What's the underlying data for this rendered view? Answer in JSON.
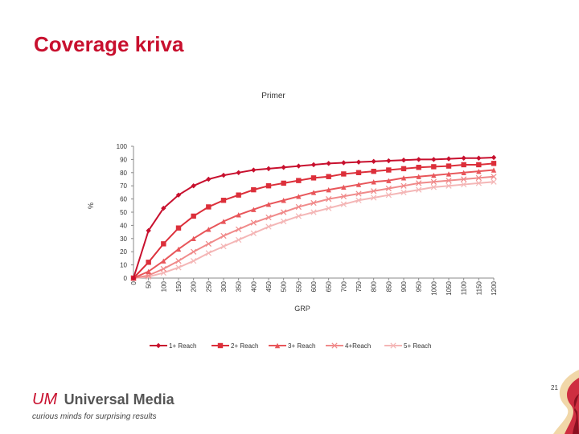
{
  "slide": {
    "title": "Coverage kriva",
    "page_number": "21"
  },
  "logo": {
    "brand_mark": "UM",
    "brand_text": "Universal Media",
    "tagline": "curious minds for surprising results"
  },
  "colors": {
    "title": "#c8102e",
    "accent": "#c8102e",
    "series": [
      "#c8102e",
      "#dc2f3a",
      "#e8565a",
      "#f08a8a",
      "#f4b6b6"
    ]
  },
  "chart_data": {
    "type": "line",
    "title": "Primer",
    "xlabel": "GRP",
    "ylabel": "%",
    "ylim": [
      0,
      100
    ],
    "yticks": [
      0,
      10,
      20,
      30,
      40,
      50,
      60,
      70,
      80,
      90,
      100
    ],
    "grid": false,
    "legend": "bottom",
    "x": [
      0,
      50,
      100,
      150,
      200,
      250,
      300,
      350,
      400,
      450,
      500,
      550,
      600,
      650,
      700,
      750,
      800,
      850,
      900,
      950,
      1000,
      1050,
      1100,
      1150,
      1200
    ],
    "series": [
      {
        "name": "1+ Reach",
        "marker": "diamond",
        "values": [
          0,
          36,
          53,
          63,
          70,
          75,
          78,
          80,
          82,
          83,
          84,
          85,
          86,
          87,
          87.5,
          88,
          88.5,
          89,
          89.5,
          90,
          90,
          90.5,
          91,
          91,
          91.5
        ]
      },
      {
        "name": "2+ Reach",
        "marker": "square",
        "values": [
          0,
          12,
          26,
          38,
          47,
          54,
          59,
          63,
          67,
          70,
          72,
          74,
          76,
          77,
          79,
          80,
          81,
          82,
          83,
          84,
          84.5,
          85,
          86,
          86,
          87
        ]
      },
      {
        "name": "3+ Reach",
        "marker": "triangle",
        "values": [
          0,
          5,
          13,
          22,
          30,
          37,
          43,
          48,
          52,
          56,
          59,
          62,
          65,
          67,
          69,
          71,
          73,
          74,
          76,
          77,
          78,
          79,
          80,
          81,
          82
        ]
      },
      {
        "name": "4+Reach",
        "marker": "x",
        "values": [
          0,
          2,
          7,
          13,
          20,
          26,
          32,
          37,
          42,
          46,
          50,
          54,
          57,
          60,
          62,
          64,
          66,
          68,
          70,
          72,
          73,
          74,
          75,
          76,
          77
        ]
      },
      {
        "name": "5+ Reach",
        "marker": "x",
        "values": [
          0,
          1,
          4,
          8,
          13,
          19,
          24,
          29,
          34,
          39,
          43,
          47,
          50,
          53,
          56,
          59,
          61,
          63,
          65,
          67,
          69,
          70,
          71,
          72,
          73
        ]
      }
    ]
  }
}
